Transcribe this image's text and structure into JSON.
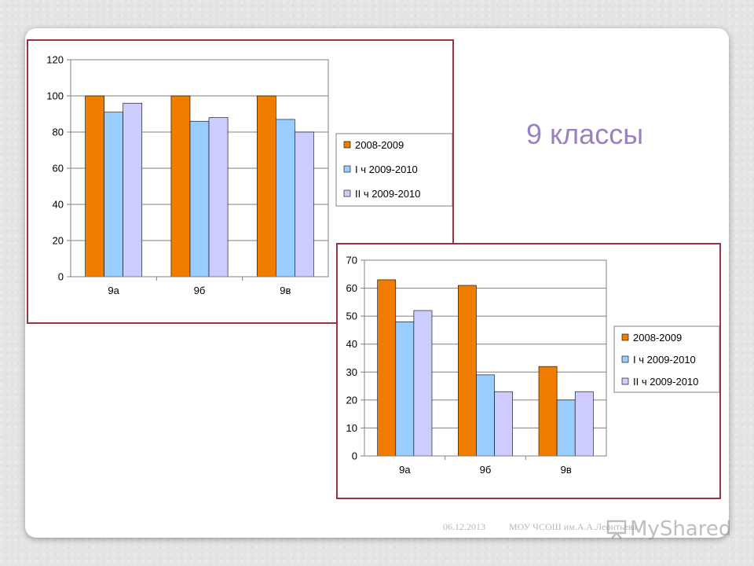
{
  "slide": {
    "title": "9 классы",
    "footer_date": "06.12.2013",
    "footer_org": "МОУ ЧСОШ им.А.А.Леонтьева",
    "watermark": "MyShared",
    "watermark_icon": "presentation-board-icon"
  },
  "colors": {
    "s1": "#f07c00",
    "s2": "#99ccff",
    "s3": "#ccccff"
  },
  "chart_data": [
    {
      "type": "bar",
      "categories": [
        "9а",
        "9б",
        "9в"
      ],
      "series": [
        {
          "name": "2008-2009",
          "values": [
            100,
            100,
            100
          ]
        },
        {
          "name": "I ч 2009-2010",
          "values": [
            91,
            86,
            87
          ]
        },
        {
          "name": "II ч 2009-2010",
          "values": [
            96,
            88,
            80
          ]
        }
      ],
      "title": "",
      "xlabel": "",
      "ylabel": "",
      "ylim": [
        0,
        120
      ],
      "yticks": [
        0,
        20,
        40,
        60,
        80,
        100,
        120
      ],
      "grid": true,
      "legend": "right"
    },
    {
      "type": "bar",
      "categories": [
        "9а",
        "9б",
        "9в"
      ],
      "series": [
        {
          "name": "2008-2009",
          "values": [
            63,
            61,
            32
          ]
        },
        {
          "name": "I ч 2009-2010",
          "values": [
            48,
            29,
            20
          ]
        },
        {
          "name": "II ч 2009-2010",
          "values": [
            52,
            23,
            23
          ]
        }
      ],
      "title": "",
      "xlabel": "",
      "ylabel": "",
      "ylim": [
        0,
        70
      ],
      "yticks": [
        0,
        10,
        20,
        30,
        40,
        50,
        60,
        70
      ],
      "grid": true,
      "legend": "right"
    }
  ]
}
